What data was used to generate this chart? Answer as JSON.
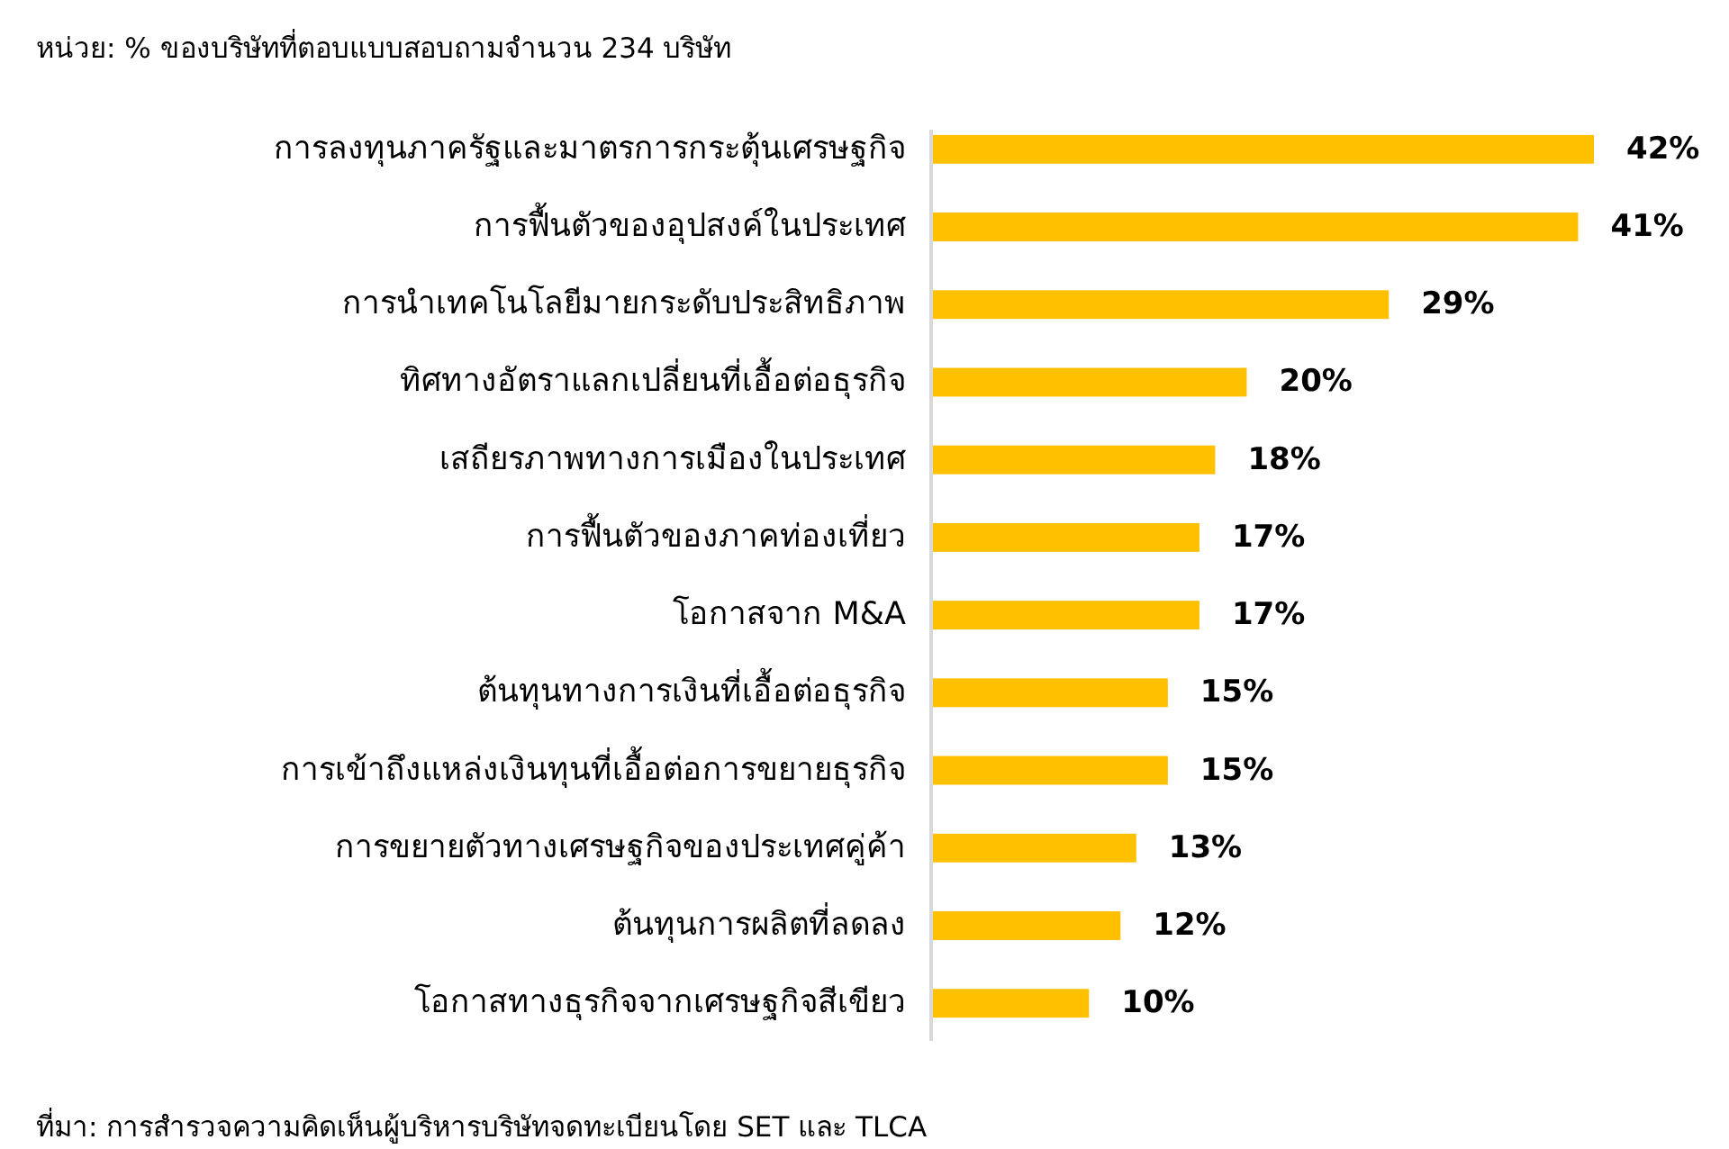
{
  "chart_data": {
    "type": "bar",
    "orientation": "horizontal",
    "title": "หน่วย: % ของบริษัทที่ตอบแบบสอบถามจำนวน 234 บริษัท",
    "categories": [
      "การลงทุนภาครัฐและมาตรการกระตุ้นเศรษฐกิจ",
      "การฟื้นตัวของอุปสงค์ในประเทศ",
      "การนำเทคโนโลยีมายกระดับประสิทธิภาพ",
      "ทิศทางอัตราแลกเปลี่ยนที่เอื้อต่อธุรกิจ",
      "เสถียรภาพทางการเมืองในประเทศ",
      "การฟื้นตัวของภาคท่องเที่ยว",
      "โอกาสจาก M&A",
      "ต้นทุนทางการเงินที่เอื้อต่อธุรกิจ",
      "การเข้าถึงแหล่งเงินทุนที่เอื้อต่อการขยายธุรกิจ",
      "การขยายตัวทางเศรษฐกิจของประเทศคู่ค้า",
      "ต้นทุนการผลิตที่ลดลง",
      "โอกาสทางธุรกิจจากเศรษฐกิจสีเขียว"
    ],
    "values": [
      42,
      41,
      29,
      20,
      18,
      17,
      17,
      15,
      15,
      13,
      12,
      10
    ],
    "value_labels": [
      "42%",
      "41%",
      "29%",
      "20%",
      "18%",
      "17%",
      "17%",
      "15%",
      "15%",
      "13%",
      "12%",
      "10%"
    ],
    "color": "#ffc000",
    "annotations": [
      "ที่มา: การสำรวจความคิดเห็นผู้บริหารบริษัทจดทะเบียนโดย SET และ TLCA"
    ]
  }
}
